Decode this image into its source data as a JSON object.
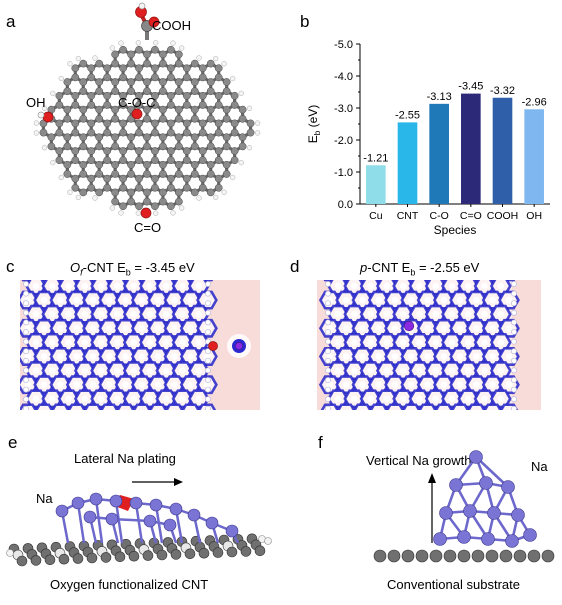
{
  "panels": {
    "a": {
      "label": "a",
      "groups": {
        "cooh": "COOH",
        "oh": "OH",
        "coc": "C-O-C",
        "co": "C=O"
      }
    },
    "b": {
      "label": "b",
      "chart_data": {
        "type": "bar",
        "categories": [
          "Cu",
          "CNT",
          "C-O",
          "C=O",
          "COOH",
          "OH"
        ],
        "values": [
          -1.21,
          -2.55,
          -3.13,
          -3.45,
          -3.32,
          -2.96
        ],
        "value_labels": [
          "-1.21",
          "-2.55",
          "-3.13",
          "-3.45",
          "-3.32",
          "-2.96"
        ],
        "colors": [
          "#8fdde8",
          "#29b6e8",
          "#1f78b8",
          "#2c2a78",
          "#2f5fa8",
          "#7fb8f0"
        ],
        "xlabel": "Species",
        "ylabel_main": "E",
        "ylabel_sub": "b",
        "ylabel_unit": " (eV)",
        "ylim": [
          0.0,
          -5.0
        ],
        "yticks": [
          "0.0",
          "-1.0",
          "-2.0",
          "-3.0",
          "-4.0",
          "-5.0"
        ],
        "y_inverted": true
      }
    },
    "c": {
      "label": "c",
      "title_prefix": "O",
      "title_sub": "f",
      "title_rest": "-CNT E",
      "title_esub": "b",
      "title_val": " = -3.45 eV"
    },
    "d": {
      "label": "d",
      "title_prefix": "p",
      "title_rest": "-CNT E",
      "title_esub": "b",
      "title_val": " = -2.55 eV"
    },
    "e": {
      "label": "e",
      "arrow_text": "Lateral Na plating",
      "na_label": "Na",
      "caption": "Oxygen functionalized CNT"
    },
    "f": {
      "label": "f",
      "arrow_text": "Vertical Na growth",
      "na_label": "Na",
      "caption": "Conventional substrate"
    },
    "colors": {
      "carbon": "#7d7d7d",
      "oxygen": "#e02020",
      "hydrogen": "#f4f4f4",
      "sodium": "#7a74d4",
      "density_bg": "#f6d5d3",
      "density_blue": "#2a2ad0"
    }
  }
}
